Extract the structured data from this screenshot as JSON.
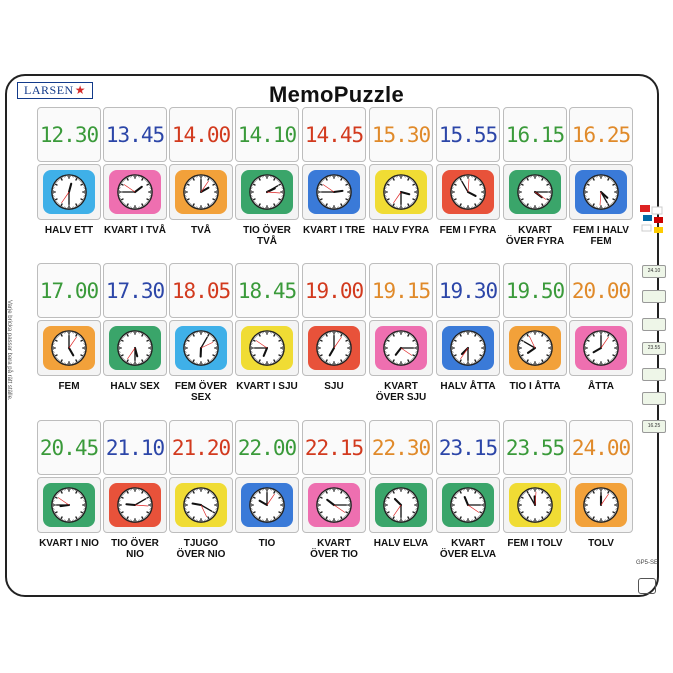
{
  "brand": {
    "logo_text": "LARSEN",
    "title": "MemoPuzzle"
  },
  "side_text": "Varje bricka passar bara på rätt ställe.",
  "colors": {
    "green": "#3a9a3a",
    "blue": "#2c46a8",
    "red": "#d23a1e",
    "orange": "#e08a2a",
    "bg_cyan": "#3fb0e8",
    "bg_pink": "#ee6fb0",
    "bg_orange": "#f2a13a",
    "bg_green": "#3aa56a",
    "bg_blue": "#3a7ad8",
    "bg_yellow": "#f0dc34",
    "bg_red": "#e8523a"
  },
  "rows": [
    [
      {
        "time": "12.30",
        "color": "green",
        "bg": "bg_cyan",
        "h": 12,
        "m": 30,
        "label": "HALV ETT"
      },
      {
        "time": "13.45",
        "color": "blue",
        "bg": "bg_pink",
        "h": 1,
        "m": 45,
        "label": "KVART I TVÅ"
      },
      {
        "time": "14.00",
        "color": "red",
        "bg": "bg_orange",
        "h": 2,
        "m": 0,
        "label": "TVÅ"
      },
      {
        "time": "14.10",
        "color": "green",
        "bg": "bg_green",
        "h": 2,
        "m": 10,
        "label": "TIO ÖVER TVÅ"
      },
      {
        "time": "14.45",
        "color": "red",
        "bg": "bg_blue",
        "h": 2,
        "m": 45,
        "label": "KVART I TRE"
      },
      {
        "time": "15.30",
        "color": "orange",
        "bg": "bg_yellow",
        "h": 3,
        "m": 30,
        "label": "HALV FYRA"
      },
      {
        "time": "15.55",
        "color": "blue",
        "bg": "bg_red",
        "h": 3,
        "m": 55,
        "label": "FEM I FYRA"
      },
      {
        "time": "16.15",
        "color": "green",
        "bg": "bg_green",
        "h": 4,
        "m": 15,
        "label": "KVART ÖVER FYRA"
      },
      {
        "time": "16.25",
        "color": "orange",
        "bg": "bg_blue",
        "h": 4,
        "m": 25,
        "label": "FEM I HALV FEM"
      }
    ],
    [
      {
        "time": "17.00",
        "color": "green",
        "bg": "bg_orange",
        "h": 5,
        "m": 0,
        "label": "FEM"
      },
      {
        "time": "17.30",
        "color": "blue",
        "bg": "bg_green",
        "h": 5,
        "m": 30,
        "label": "HALV SEX"
      },
      {
        "time": "18.05",
        "color": "red",
        "bg": "bg_cyan",
        "h": 6,
        "m": 5,
        "label": "FEM ÖVER SEX"
      },
      {
        "time": "18.45",
        "color": "green",
        "bg": "bg_yellow",
        "h": 6,
        "m": 45,
        "label": "KVART I SJU"
      },
      {
        "time": "19.00",
        "color": "red",
        "bg": "bg_red",
        "h": 7,
        "m": 0,
        "label": "SJU"
      },
      {
        "time": "19.15",
        "color": "orange",
        "bg": "bg_pink",
        "h": 7,
        "m": 15,
        "label": "KVART ÖVER SJU"
      },
      {
        "time": "19.30",
        "color": "blue",
        "bg": "bg_blue",
        "h": 7,
        "m": 30,
        "label": "HALV ÅTTA"
      },
      {
        "time": "19.50",
        "color": "green",
        "bg": "bg_orange",
        "h": 7,
        "m": 50,
        "label": "TIO I ÅTTA"
      },
      {
        "time": "20.00",
        "color": "orange",
        "bg": "bg_pink",
        "h": 8,
        "m": 0,
        "label": "ÅTTA"
      }
    ],
    [
      {
        "time": "20.45",
        "color": "green",
        "bg": "bg_green",
        "h": 8,
        "m": 45,
        "label": "KVART I NIO"
      },
      {
        "time": "21.10",
        "color": "blue",
        "bg": "bg_red",
        "h": 9,
        "m": 10,
        "label": "TIO ÖVER NIO"
      },
      {
        "time": "21.20",
        "color": "red",
        "bg": "bg_yellow",
        "h": 9,
        "m": 20,
        "label": "TJUGO ÖVER NIO"
      },
      {
        "time": "22.00",
        "color": "green",
        "bg": "bg_blue",
        "h": 10,
        "m": 0,
        "label": "TIO"
      },
      {
        "time": "22.15",
        "color": "red",
        "bg": "bg_pink",
        "h": 10,
        "m": 15,
        "label": "KVART ÖVER TIO"
      },
      {
        "time": "22.30",
        "color": "orange",
        "bg": "bg_green",
        "h": 10,
        "m": 30,
        "label": "HALV ELVA"
      },
      {
        "time": "23.15",
        "color": "blue",
        "bg": "bg_green",
        "h": 11,
        "m": 15,
        "label": "KVART ÖVER ELVA"
      },
      {
        "time": "23.55",
        "color": "green",
        "bg": "bg_yellow",
        "h": 11,
        "m": 55,
        "label": "FEM I TOLV"
      },
      {
        "time": "24.00",
        "color": "orange",
        "bg": "bg_orange",
        "h": 12,
        "m": 0,
        "label": "TOLV"
      }
    ]
  ],
  "thumbs": [
    "24.10",
    "",
    "",
    "23.55",
    "",
    "",
    "16.25"
  ],
  "code": "GP5-SE"
}
